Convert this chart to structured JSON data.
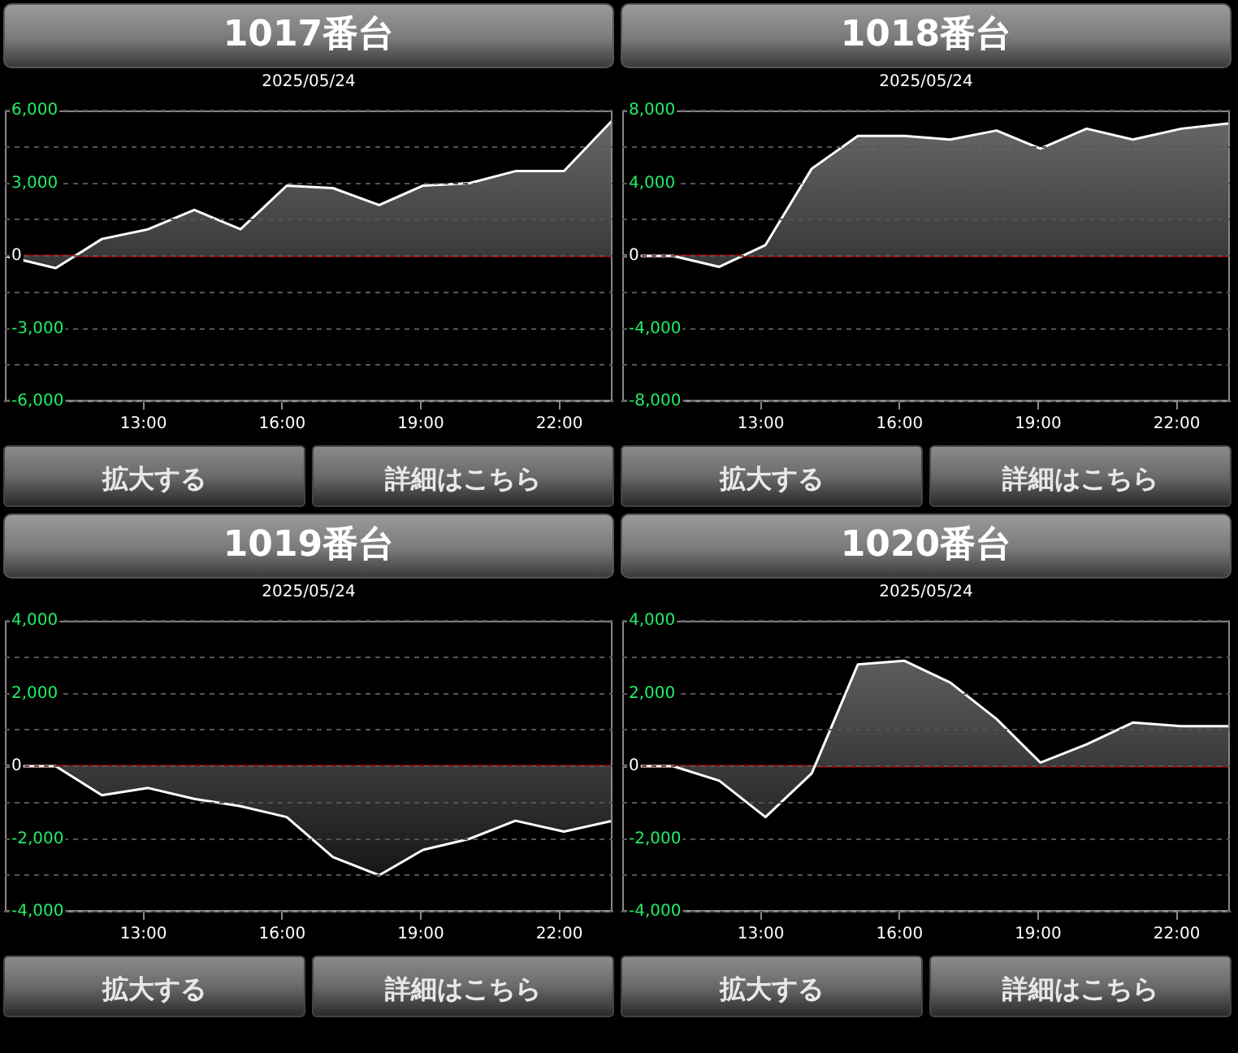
{
  "chart_data": [
    {
      "type": "area",
      "title": "1017番台",
      "subtitle": "2025/05/24",
      "annotations": [
        "拡大する",
        "詳細はこちら"
      ],
      "marker": "none",
      "grid": "y",
      "x": [
        10,
        11.1,
        12.1,
        13.1,
        14.1,
        15.1,
        16.1,
        17.1,
        18.1,
        19.05,
        20.05,
        21.05,
        22.1,
        23.15
      ],
      "series": [
        {
          "color": "#ffffff",
          "values": [
            0,
            -500,
            700,
            1100,
            1900,
            1100,
            2900,
            2800,
            2100,
            2900,
            3000,
            3500,
            3500,
            5600
          ]
        }
      ],
      "xlim": [
        10,
        23.15
      ],
      "xticks": [
        {
          "value": 13,
          "label": "13:00"
        },
        {
          "value": 16,
          "label": "16:00"
        },
        {
          "value": 19,
          "label": "19:00"
        },
        {
          "value": 22,
          "label": "22:00"
        }
      ],
      "ylim": [
        -6000,
        6000
      ],
      "yticks": [
        {
          "value": -6000,
          "label": "-6,000"
        },
        {
          "value": -4500,
          "label": null
        },
        {
          "value": -3000,
          "label": "-3,000"
        },
        {
          "value": -1500,
          "label": null
        },
        {
          "value": 0,
          "label": "0"
        },
        {
          "value": 1500,
          "label": null
        },
        {
          "value": 3000,
          "label": "3,000"
        },
        {
          "value": 4500,
          "label": null
        },
        {
          "value": 6000,
          "label": "6,000"
        }
      ],
      "ref_lines": [
        {
          "axis": "y",
          "value": 0,
          "color": "#c00000"
        }
      ]
    },
    {
      "type": "area",
      "title": "1018番台",
      "subtitle": "2025/05/24",
      "annotations": [
        "拡大する",
        "詳細はこちら"
      ],
      "marker": "none",
      "grid": "y",
      "x": [
        10,
        11.1,
        12.1,
        13.1,
        14.1,
        15.1,
        16.1,
        17.1,
        18.1,
        19.05,
        20.05,
        21.05,
        22.1,
        23.15
      ],
      "series": [
        {
          "color": "#ffffff",
          "values": [
            0,
            0,
            -600,
            600,
            4800,
            6600,
            6600,
            6400,
            6900,
            5900,
            7000,
            6400,
            7000,
            7300
          ]
        }
      ],
      "xlim": [
        10,
        23.15
      ],
      "xticks": [
        {
          "value": 13,
          "label": "13:00"
        },
        {
          "value": 16,
          "label": "16:00"
        },
        {
          "value": 19,
          "label": "19:00"
        },
        {
          "value": 22,
          "label": "22:00"
        }
      ],
      "ylim": [
        -8000,
        8000
      ],
      "yticks": [
        {
          "value": -8000,
          "label": "-8,000"
        },
        {
          "value": -6000,
          "label": null
        },
        {
          "value": -4000,
          "label": "-4,000"
        },
        {
          "value": -2000,
          "label": null
        },
        {
          "value": 0,
          "label": "0"
        },
        {
          "value": 2000,
          "label": null
        },
        {
          "value": 4000,
          "label": "4,000"
        },
        {
          "value": 6000,
          "label": null
        },
        {
          "value": 8000,
          "label": "8,000"
        }
      ],
      "ref_lines": [
        {
          "axis": "y",
          "value": 0,
          "color": "#c00000"
        }
      ]
    },
    {
      "type": "area",
      "title": "1019番台",
      "subtitle": "2025/05/24",
      "annotations": [
        "拡大する",
        "詳細はこちら"
      ],
      "marker": "none",
      "grid": "y",
      "x": [
        10,
        11.1,
        12.1,
        13.1,
        14.1,
        15.1,
        16.1,
        17.1,
        18.1,
        19.05,
        20.05,
        21.05,
        22.1,
        23.15
      ],
      "series": [
        {
          "color": "#ffffff",
          "values": [
            0,
            0,
            -800,
            -600,
            -900,
            -1100,
            -1400,
            -2500,
            -3000,
            -2300,
            -2000,
            -1500,
            -1800,
            -1500
          ]
        }
      ],
      "xlim": [
        10,
        23.15
      ],
      "xticks": [
        {
          "value": 13,
          "label": "13:00"
        },
        {
          "value": 16,
          "label": "16:00"
        },
        {
          "value": 19,
          "label": "19:00"
        },
        {
          "value": 22,
          "label": "22:00"
        }
      ],
      "ylim": [
        -4000,
        4000
      ],
      "yticks": [
        {
          "value": -4000,
          "label": "-4,000"
        },
        {
          "value": -3000,
          "label": null
        },
        {
          "value": -2000,
          "label": "-2,000"
        },
        {
          "value": -1000,
          "label": null
        },
        {
          "value": 0,
          "label": "0"
        },
        {
          "value": 1000,
          "label": null
        },
        {
          "value": 2000,
          "label": "2,000"
        },
        {
          "value": 3000,
          "label": null
        },
        {
          "value": 4000,
          "label": "4,000"
        }
      ],
      "ref_lines": [
        {
          "axis": "y",
          "value": 0,
          "color": "#c00000"
        }
      ]
    },
    {
      "type": "area",
      "title": "1020番台",
      "subtitle": "2025/05/24",
      "annotations": [
        "拡大する",
        "詳細はこちら"
      ],
      "marker": "none",
      "grid": "y",
      "x": [
        10,
        11.1,
        12.1,
        13.1,
        14.1,
        15.1,
        16.1,
        17.1,
        18.1,
        19.05,
        20.05,
        21.05,
        22.1,
        23.15
      ],
      "series": [
        {
          "color": "#ffffff",
          "values": [
            0,
            0,
            -400,
            -1400,
            -200,
            2800,
            2900,
            2300,
            1300,
            100,
            600,
            1200,
            1100,
            1100
          ]
        }
      ],
      "xlim": [
        10,
        23.15
      ],
      "xticks": [
        {
          "value": 13,
          "label": "13:00"
        },
        {
          "value": 16,
          "label": "16:00"
        },
        {
          "value": 19,
          "label": "19:00"
        },
        {
          "value": 22,
          "label": "22:00"
        }
      ],
      "ylim": [
        -4000,
        4000
      ],
      "yticks": [
        {
          "value": -4000,
          "label": "-4,000"
        },
        {
          "value": -3000,
          "label": null
        },
        {
          "value": -2000,
          "label": "-2,000"
        },
        {
          "value": -1000,
          "label": null
        },
        {
          "value": 0,
          "label": "0"
        },
        {
          "value": 1000,
          "label": null
        },
        {
          "value": 2000,
          "label": "2,000"
        },
        {
          "value": 3000,
          "label": null
        },
        {
          "value": 4000,
          "label": "4,000"
        }
      ],
      "ref_lines": [
        {
          "axis": "y",
          "value": 0,
          "color": "#c00000"
        }
      ]
    }
  ]
}
